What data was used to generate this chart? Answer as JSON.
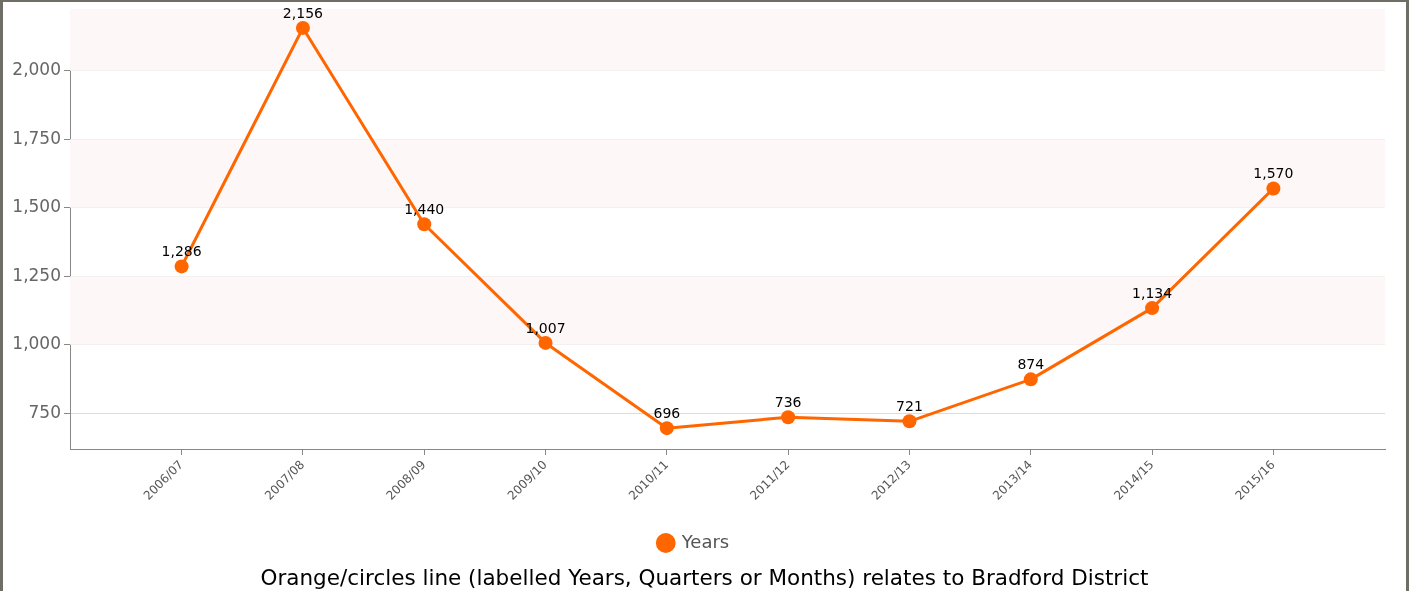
{
  "chart_data": {
    "type": "line",
    "categories": [
      "2006/07",
      "2007/08",
      "2008/09",
      "2009/10",
      "2010/11",
      "2011/12",
      "2012/13",
      "2013/14",
      "2014/15",
      "2015/16"
    ],
    "series": [
      {
        "name": "Years",
        "color": "#ff6600",
        "values": [
          1286,
          2156,
          1440,
          1007,
          696,
          736,
          721,
          874,
          1134,
          1570
        ],
        "value_labels": [
          "1,286",
          "2,156",
          "1,440",
          "1,007",
          "696",
          "736",
          "721",
          "874",
          "1,134",
          "1,570"
        ]
      }
    ],
    "ylim": [
      620,
      2225
    ],
    "yticks": [
      750,
      {
        "value": 1000,
        "label": "1,000"
      },
      {
        "value": 1250,
        "label": "1,250"
      },
      {
        "value": 1500,
        "label": "1,500"
      },
      {
        "value": 1750,
        "label": "1,750"
      },
      {
        "value": 2000,
        "label": "2,000"
      }
    ],
    "grid": "y",
    "legend": "bottom",
    "marker": "circle",
    "line_style": "solid",
    "annotations": [
      "Orange/circles line (labelled Years, Quarters or Months) relates to Bradford District"
    ]
  }
}
